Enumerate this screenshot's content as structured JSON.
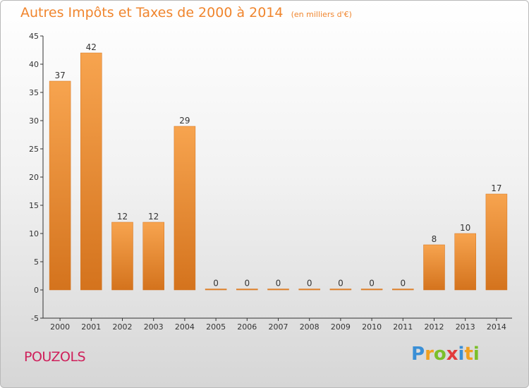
{
  "header": {
    "title": "Autres Impôts et Taxes de 2000 à 2014",
    "subtitle": "(en milliers d'€)"
  },
  "commune": "POUZOLS",
  "brand": {
    "letters": [
      "P",
      "r",
      "o",
      "x",
      "i",
      "t",
      "i"
    ],
    "colors": [
      "#3a8fd6",
      "#f0a020",
      "#7bbf2a",
      "#e23b3b",
      "#3a8fd6",
      "#f0a020",
      "#7bbf2a"
    ]
  },
  "chart_data": {
    "type": "bar",
    "categories": [
      "2000",
      "2001",
      "2002",
      "2003",
      "2004",
      "2005",
      "2006",
      "2007",
      "2008",
      "2009",
      "2010",
      "2011",
      "2012",
      "2013",
      "2014"
    ],
    "values": [
      37,
      42,
      12,
      12,
      29,
      0,
      0,
      0,
      0,
      0,
      0,
      0,
      8,
      10,
      17
    ],
    "data_labels": [
      "37",
      "42",
      "12",
      "12",
      "29",
      "0",
      "0",
      "0",
      "0",
      "0",
      "0",
      "0",
      "8",
      "10",
      "17"
    ],
    "yticks": [
      -5,
      0,
      5,
      10,
      15,
      20,
      25,
      30,
      35,
      40,
      45
    ],
    "ylim": [
      -5,
      45
    ],
    "grid": false,
    "bar_color_light": "#f7a44f",
    "bar_color_dark": "#d4731d"
  }
}
